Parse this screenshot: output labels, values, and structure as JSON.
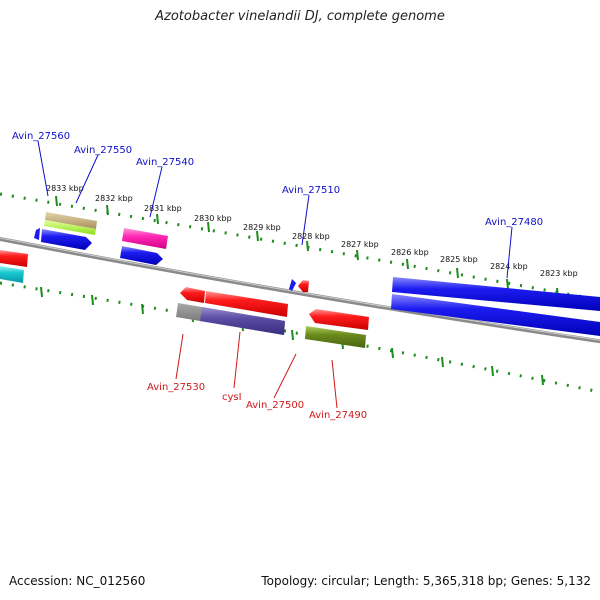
{
  "title": "Azotobacter vinelandii DJ, complete genome",
  "footer": {
    "accession": "Accession: NC_012560",
    "stats": "Topology: circular; Length: 5,365,318 bp; Genes: 5,132"
  },
  "ticks": [
    "2833 kbp",
    "2832 kbp",
    "2831 kbp",
    "2830 kbp",
    "2829 kbp",
    "2828 kbp",
    "2827 kbp",
    "2826 kbp",
    "2825 kbp",
    "2824 kbp",
    "2823 kbp"
  ],
  "genes_forward": [
    "Avin_27560",
    "Avin_27550",
    "Avin_27540",
    "Avin_27510",
    "Avin_27480"
  ],
  "genes_reverse": [
    "Avin_27530",
    "cysI",
    "Avin_27500",
    "Avin_27490"
  ],
  "colors": {
    "forward_label": "#1010c8",
    "reverse_label": "#d01818",
    "dotted_track": "#1e8c1e",
    "backbone": "#8a8a8a"
  }
}
